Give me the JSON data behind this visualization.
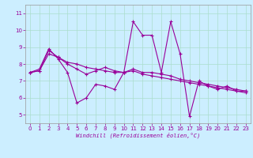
{
  "xlabel": "Windchill (Refroidissement éolien,°C)",
  "bg_color": "#cceeff",
  "line_color": "#990099",
  "grid_color": "#aaddcc",
  "xlim": [
    -0.5,
    23.5
  ],
  "ylim": [
    4.5,
    11.5
  ],
  "yticks": [
    5,
    6,
    7,
    8,
    9,
    10,
    11
  ],
  "xticks": [
    0,
    1,
    2,
    3,
    4,
    5,
    6,
    7,
    8,
    9,
    10,
    11,
    12,
    13,
    14,
    15,
    16,
    17,
    18,
    19,
    20,
    21,
    22,
    23
  ],
  "series": [
    [
      7.5,
      7.7,
      8.9,
      8.3,
      7.5,
      5.7,
      6.0,
      6.8,
      6.7,
      6.5,
      7.5,
      10.5,
      9.7,
      9.7,
      7.5,
      10.5,
      8.6,
      4.9,
      7.0,
      6.7,
      6.5,
      6.7,
      6.4,
      6.4
    ],
    [
      7.5,
      7.6,
      8.8,
      8.4,
      8.0,
      7.7,
      7.4,
      7.6,
      7.8,
      7.6,
      7.5,
      7.7,
      7.5,
      7.5,
      7.4,
      7.3,
      7.1,
      7.0,
      6.9,
      6.8,
      6.7,
      6.6,
      6.5,
      6.4
    ],
    [
      7.5,
      7.6,
      8.6,
      8.4,
      8.1,
      8.0,
      7.8,
      7.7,
      7.6,
      7.5,
      7.5,
      7.6,
      7.4,
      7.3,
      7.2,
      7.1,
      7.0,
      6.9,
      6.8,
      6.7,
      6.6,
      6.5,
      6.4,
      6.3
    ]
  ],
  "tick_fontsize": 5,
  "xlabel_fontsize": 5,
  "xlabel_style": "italic"
}
